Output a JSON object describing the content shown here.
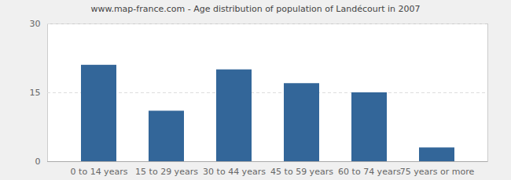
{
  "chart_data": {
    "type": "bar",
    "title": "www.map-france.com - Age distribution of population of Landécourt in 2007",
    "categories": [
      "0 to 14 years",
      "15 to 29 years",
      "30 to 44 years",
      "45 to 59 years",
      "60 to 74 years",
      "75 years or more"
    ],
    "values": [
      21,
      11,
      20,
      17,
      15,
      3
    ],
    "color": "#336699",
    "ylim": [
      0,
      30
    ],
    "yticks": [
      0,
      15,
      30
    ],
    "grid": true
  }
}
